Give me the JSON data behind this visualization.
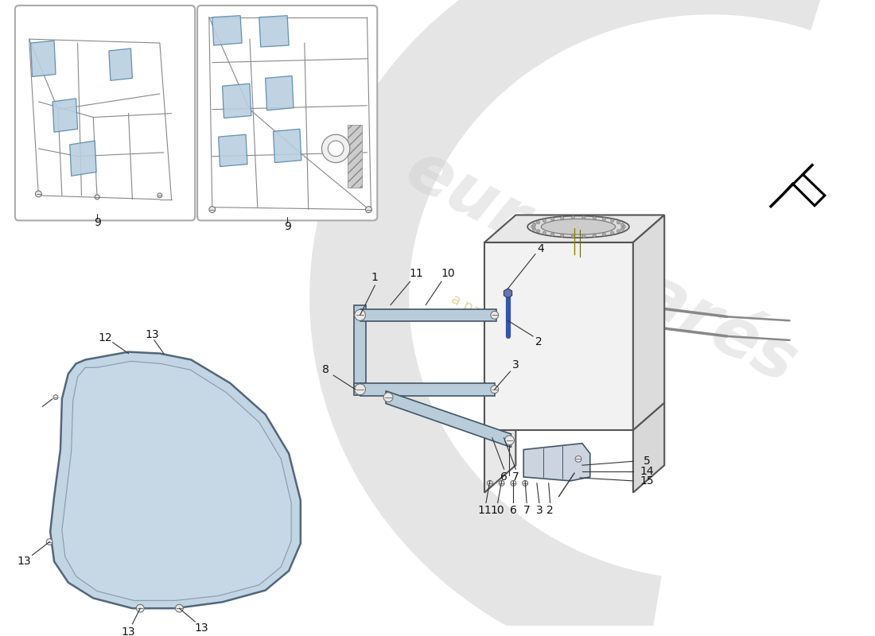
{
  "bg": "#ffffff",
  "lb": "#b8cfe0",
  "lc": "#555555",
  "sc": "#888888",
  "wm_text_color": "#c8c8c8",
  "wm_year_color": "#c8b840",
  "box_edge": "#aaaaaa",
  "guard_fill": "#b8cede",
  "guard_edge": "#3a5068",
  "strap_fill": "#b8ccda",
  "strap_edge": "#445566",
  "tank_fill": "#f0f0f0",
  "tank_edge": "#555555",
  "label_fs": 9.5,
  "arrow_color": "#000000"
}
